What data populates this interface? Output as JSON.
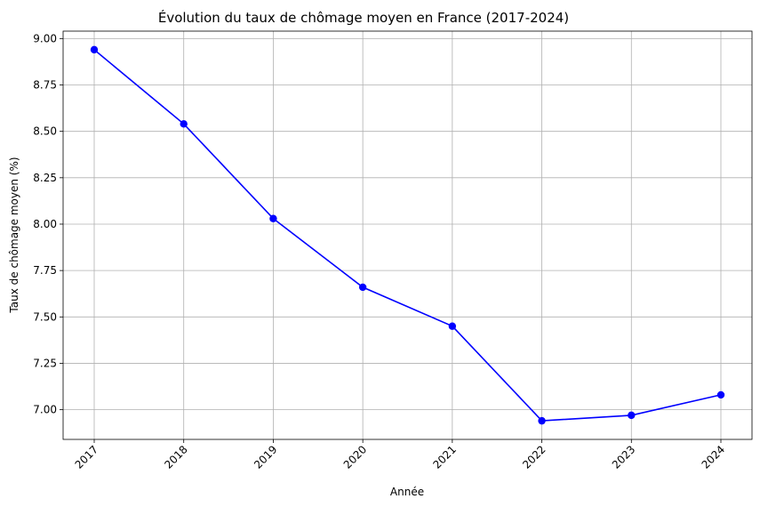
{
  "chart_data": {
    "type": "line",
    "title": "Évolution du taux de chômage moyen en France (2017-2024)",
    "xlabel": "Année",
    "ylabel": "Taux de chômage moyen (%)",
    "x": [
      "2017",
      "2018",
      "2019",
      "2020",
      "2021",
      "2022",
      "2023",
      "2024"
    ],
    "series": [
      {
        "values": [
          8.94,
          8.54,
          8.03,
          7.66,
          7.45,
          6.94,
          6.97,
          7.08
        ],
        "color": "#0000ff",
        "marker": "circle"
      }
    ],
    "yticks": [
      "7.00",
      "7.25",
      "7.50",
      "7.75",
      "8.00",
      "8.25",
      "8.50",
      "8.75",
      "9.00"
    ],
    "ylim": [
      6.84,
      9.04
    ],
    "grid": true,
    "xtick_rotation": 45
  }
}
